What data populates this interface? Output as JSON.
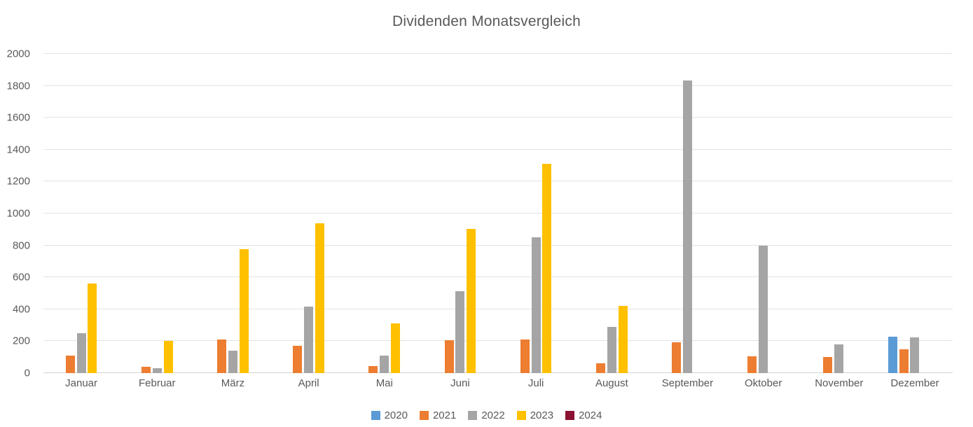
{
  "chart_data": {
    "type": "bar",
    "title": "Dividenden Monatsvergleich",
    "categories": [
      "Januar",
      "Februar",
      "März",
      "April",
      "Mai",
      "Juni",
      "Juli",
      "August",
      "September",
      "Oktober",
      "November",
      "Dezember"
    ],
    "series": [
      {
        "name": "2020",
        "color": "#5B9BD5",
        "values": [
          0,
          0,
          0,
          0,
          0,
          0,
          0,
          0,
          0,
          0,
          0,
          230
        ]
      },
      {
        "name": "2021",
        "color": "#ED7D31",
        "values": [
          110,
          40,
          210,
          170,
          45,
          205,
          210,
          60,
          195,
          105,
          100,
          150
        ]
      },
      {
        "name": "2022",
        "color": "#A5A5A5",
        "values": [
          250,
          30,
          140,
          415,
          110,
          515,
          850,
          290,
          1835,
          800,
          180,
          225
        ]
      },
      {
        "name": "2023",
        "color": "#FFC000",
        "values": [
          560,
          200,
          775,
          940,
          310,
          905,
          1310,
          420,
          0,
          0,
          0,
          0
        ]
      },
      {
        "name": "2024",
        "color": "#8B1232",
        "values": [
          0,
          0,
          0,
          0,
          0,
          0,
          0,
          0,
          0,
          0,
          0,
          0
        ]
      }
    ],
    "xlabel": "",
    "ylabel": "",
    "ylim": [
      0,
      2000
    ],
    "yticks": [
      0,
      200,
      400,
      600,
      800,
      1000,
      1200,
      1400,
      1600,
      1800,
      2000
    ],
    "grid": "horizontal",
    "legend_position": "bottom"
  }
}
